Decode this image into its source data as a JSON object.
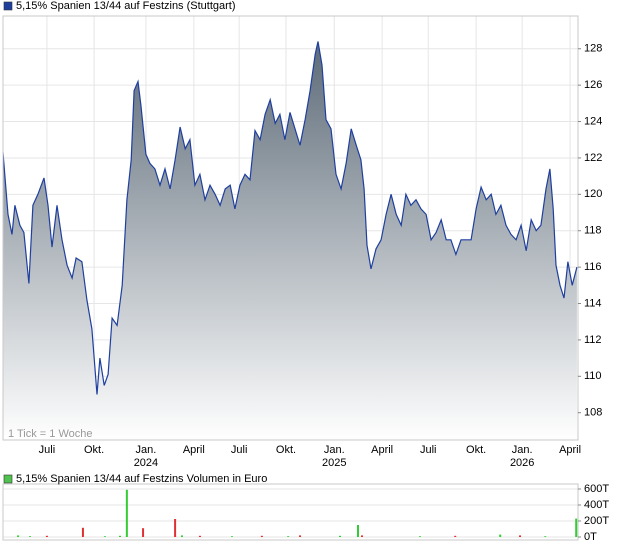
{
  "chart_data": [
    {
      "type": "area",
      "series": [
        {
          "name": "5,15% Spanien 13/44 auf Festzins (Stuttgart)",
          "color": "#1f3f9f",
          "values": [
            122.3,
            118.9,
            117.8,
            119.4,
            118.3,
            117.9,
            115.1,
            119.4,
            120.0,
            120.9,
            119.4,
            117.1,
            119.4,
            117.5,
            116.1,
            115.4,
            116.5,
            116.3,
            114.2,
            112.6,
            109.0,
            111.0,
            109.5,
            110.1,
            113.2,
            112.8,
            115.0,
            119.7,
            121.9,
            125.7,
            126.2,
            124.9,
            122.2,
            121.7,
            121.4,
            120.5,
            121.4,
            120.3,
            121.9,
            123.7,
            122.5,
            123.0,
            120.5,
            121.1,
            119.7,
            120.5,
            120.0,
            119.4,
            120.3,
            120.5,
            119.2,
            120.5,
            121.1,
            120.8,
            123.5,
            123.0,
            124.4,
            125.2,
            123.9,
            124.4,
            123.0,
            124.5,
            123.6,
            122.7,
            124.1,
            125.7,
            127.7,
            128.4,
            127.1,
            124.1,
            123.6,
            121.1,
            120.3,
            121.7,
            123.6,
            122.7,
            121.9,
            120.3,
            117.2,
            115.9,
            117.0,
            117.5,
            118.9,
            120.0,
            118.9,
            118.3,
            120.0,
            119.4,
            119.7,
            119.2,
            118.9,
            117.5,
            117.9,
            118.6,
            117.5,
            117.5,
            116.7,
            117.5,
            117.5,
            117.5,
            119.2,
            120.4,
            119.7,
            120.0,
            118.9,
            119.4,
            118.3,
            117.8,
            117.5,
            118.3,
            116.9,
            118.6,
            118.0,
            118.3,
            120.3,
            121.4,
            119.2,
            116.1,
            115.0,
            114.3,
            116.3,
            115.0,
            116.0
          ]
        }
      ],
      "x": [
        0,
        1.4,
        2.5,
        3.3,
        4.7,
        5.8,
        7.2,
        8.3,
        9.7,
        11.4,
        12.5,
        13.6,
        15,
        16.4,
        17.8,
        19.2,
        20.3,
        21.9,
        23.3,
        24.7,
        26.1,
        26.9,
        28.1,
        29.2,
        30.3,
        31.7,
        33.1,
        34.4,
        35.6,
        36.4,
        37.5,
        38.3,
        39.7,
        40.8,
        42.2,
        43.6,
        45,
        46.4,
        47.8,
        49.2,
        50.6,
        51.9,
        53.3,
        54.7,
        56.1,
        57.5,
        58.9,
        60.3,
        61.7,
        63.1,
        64.4,
        65.8,
        67.2,
        68.6,
        70,
        71.4,
        72.8,
        74.2,
        75.6,
        76.9,
        78.3,
        79.7,
        81.1,
        82.5,
        83.9,
        85.3,
        86.7,
        87.5,
        88.6,
        89.7,
        91.1,
        92.5,
        93.9,
        95.3,
        96.7,
        98.1,
        99.4,
        100.3,
        101.1,
        102.2,
        103.6,
        105,
        106.4,
        107.8,
        109.2,
        110.6,
        111.9,
        113.3,
        114.7,
        116.1,
        117.5,
        118.9,
        120.3,
        121.7,
        123.1,
        124.4,
        125.8,
        127.2,
        128.6,
        130,
        131.4,
        132.8,
        134.2,
        135.6,
        136.9,
        138.3,
        139.7,
        141.1,
        142.5,
        143.9,
        145.3,
        146.7,
        148.1,
        149.4,
        150.8,
        151.9,
        152.8,
        153.6,
        154.7,
        155.8,
        156.9,
        158.1,
        159.4
      ],
      "xlim": [
        0,
        159.7
      ],
      "xticks": [
        {
          "value": 12.2,
          "label": "Juli"
        },
        {
          "value": 25.3,
          "label": "Okt."
        },
        {
          "value": 39.7,
          "label": "Jan."
        },
        {
          "value": 53,
          "label": "April"
        },
        {
          "value": 65.6,
          "label": "Juli"
        },
        {
          "value": 78.6,
          "label": "Okt."
        },
        {
          "value": 92,
          "label": "Jan."
        },
        {
          "value": 105.3,
          "label": "April"
        },
        {
          "value": 118.1,
          "label": "Juli"
        },
        {
          "value": 131.4,
          "label": "Okt."
        },
        {
          "value": 144.2,
          "label": "Jan."
        },
        {
          "value": 157.5,
          "label": "April"
        }
      ],
      "xtick_years": [
        {
          "value": 39.7,
          "label": "2024"
        },
        {
          "value": 92,
          "label": "2025"
        },
        {
          "value": 144.2,
          "label": "2026"
        }
      ],
      "ylim": [
        106.5,
        129.8
      ],
      "yticks": [
        108,
        110,
        112,
        114,
        116,
        118,
        120,
        122,
        124,
        126,
        128
      ],
      "annotation": "1 Tick = 1 Woche",
      "grid": true,
      "fill_top": "#5d6b78"
    },
    {
      "type": "bar",
      "series": [
        {
          "name": "5,15% Spanien 13/44 auf Festzins Volumen in Euro",
          "color": "#4fc24f",
          "values": [
            20000,
            10000,
            15000,
            115000,
            10000,
            15000,
            590000,
            110000,
            225000,
            20000,
            15000,
            10000,
            15000,
            10000,
            20000,
            15000,
            150000,
            20000,
            10000,
            15000,
            30000,
            20000,
            10000,
            230000
          ],
          "colors": [
            "#33cc33",
            "#33cc33",
            "#e03030",
            "#e03030",
            "#33cc33",
            "#33cc33",
            "#33cc33",
            "#e03030",
            "#e03030",
            "#33cc33",
            "#e03030",
            "#33cc33",
            "#e03030",
            "#33cc33",
            "#e03030",
            "#33cc33",
            "#33cc33",
            "#e03030",
            "#33cc33",
            "#e03030",
            "#33cc33",
            "#e03030",
            "#33cc33",
            "#33cc33"
          ]
        }
      ],
      "x": [
        4.2,
        7.5,
        12.2,
        22.2,
        28.3,
        32.5,
        34.4,
        38.9,
        47.8,
        49.7,
        54.7,
        63.6,
        71.9,
        79.2,
        82.5,
        93.6,
        98.6,
        99.7,
        115.8,
        125.6,
        138.1,
        143.6,
        150.6,
        159.2
      ],
      "xlim": [
        0,
        159.7
      ],
      "ylim": [
        -37500,
        662500
      ],
      "yticks": [
        {
          "value": 0,
          "label": "0T"
        },
        {
          "value": 200000,
          "label": "200T"
        },
        {
          "value": 400000,
          "label": "400T"
        },
        {
          "value": 600000,
          "label": "600T"
        }
      ],
      "grid": true
    }
  ]
}
